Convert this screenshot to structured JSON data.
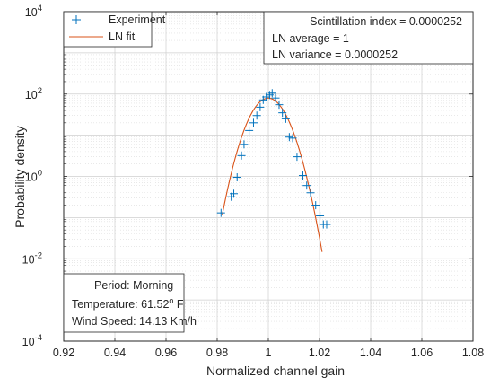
{
  "chart_data": {
    "type": "scatter",
    "xlabel": "Normalized channel gain",
    "ylabel": "Probability density",
    "xlim": [
      0.92,
      1.08
    ],
    "ylim": [
      0.0001,
      10000
    ],
    "y_scale": "log",
    "x_ticks": [
      "0.92",
      "0.94",
      "0.96",
      "0.98",
      "1",
      "1.02",
      "1.04",
      "1.06",
      "1.08"
    ],
    "y_ticks": [
      {
        "base": "10",
        "exp": "-4"
      },
      {
        "base": "10",
        "exp": "-2"
      },
      {
        "base": "10",
        "exp": "0"
      },
      {
        "base": "10",
        "exp": "2"
      },
      {
        "base": "10",
        "exp": "4"
      }
    ],
    "grid": true,
    "legend": {
      "position": "top-left",
      "entries": [
        "Experiment",
        "LN fit"
      ]
    },
    "stats_box": {
      "position": "top-right",
      "lines": [
        "Scintillation index = 0.0000252",
        "LN average = 1",
        "LN variance = 0.0000252"
      ]
    },
    "info_box": {
      "position": "bottom-left",
      "period": "Period: Morning",
      "temperature_prefix": "Temperature: 61.52",
      "temperature_sup": "o",
      "temperature_suffix": " F",
      "wind": "Wind Speed: 14.13 Km/h"
    },
    "series": [
      {
        "name": "Experiment",
        "marker": "+",
        "color": "#0072BD",
        "points": [
          [
            0.9815,
            0.13
          ],
          [
            0.9855,
            0.32
          ],
          [
            0.9865,
            0.38
          ],
          [
            0.9878,
            0.95
          ],
          [
            0.9895,
            3.2
          ],
          [
            0.9905,
            6.0
          ],
          [
            0.9925,
            13.0
          ],
          [
            0.9942,
            20.0
          ],
          [
            0.9955,
            30.0
          ],
          [
            0.9968,
            48.0
          ],
          [
            0.998,
            72.0
          ],
          [
            0.9992,
            85.0
          ],
          [
            1.0005,
            95.0
          ],
          [
            1.0015,
            105.0
          ],
          [
            1.0028,
            80.0
          ],
          [
            1.0042,
            55.0
          ],
          [
            1.0055,
            35.0
          ],
          [
            1.0068,
            25.0
          ],
          [
            1.0082,
            9.0
          ],
          [
            1.0095,
            8.5
          ],
          [
            1.0112,
            3.0
          ],
          [
            1.0135,
            1.05
          ],
          [
            1.015,
            0.6
          ],
          [
            1.0165,
            0.4
          ],
          [
            1.0185,
            0.2
          ],
          [
            1.0202,
            0.11
          ],
          [
            1.0215,
            0.068
          ],
          [
            1.0228,
            0.068
          ]
        ]
      },
      {
        "name": "LN fit",
        "type": "line",
        "color": "#D95319",
        "mu": 1,
        "variance": 2.52e-05,
        "x_range": [
          0.982,
          1.021
        ]
      }
    ]
  }
}
